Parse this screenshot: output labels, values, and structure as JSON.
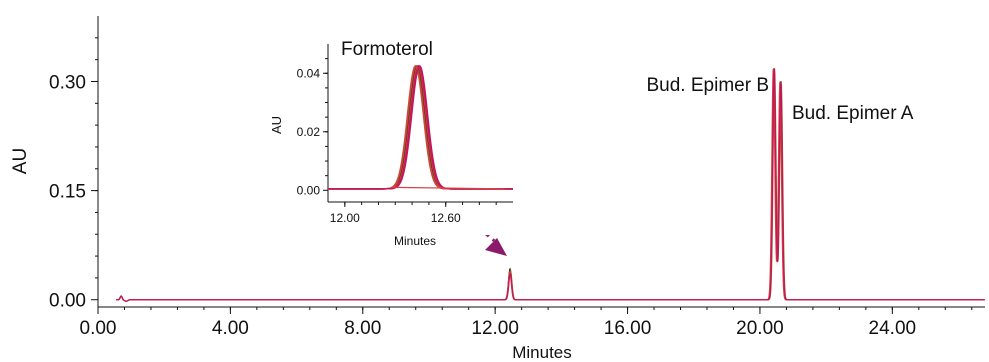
{
  "chart_data": [
    {
      "type": "line",
      "xlabel": "Minutes",
      "ylabel": "AU",
      "xlim": [
        0.0,
        26.8
      ],
      "ylim": [
        -0.01,
        0.39
      ],
      "x_ticks": [
        "0.00",
        "4.00",
        "8.00",
        "12.00",
        "16.00",
        "20.00",
        "24.00"
      ],
      "y_ticks": [
        "0.00",
        "0.15",
        "0.30"
      ],
      "peaks": [
        {
          "label": "",
          "x": 0.7,
          "y": 0.005
        },
        {
          "label": "",
          "x": 12.45,
          "y": 0.042
        },
        {
          "label": "Bud. Epimer B",
          "x": 20.42,
          "y": 0.318
        },
        {
          "label": "Bud. Epimer A",
          "x": 20.62,
          "y": 0.3
        }
      ],
      "series_colors": [
        "#111111",
        "#8a6a1a",
        "#d94040",
        "#c2185b"
      ],
      "arrow_color": "#8b1a6b"
    },
    {
      "type": "line",
      "title": "Formoterol",
      "xlabel": "Minutes",
      "ylabel": "AU",
      "xlim": [
        11.9,
        13.0
      ],
      "ylim": [
        -0.004,
        0.05
      ],
      "x_ticks": [
        "12.00",
        "12.60"
      ],
      "y_ticks": [
        "0.00",
        "0.02",
        "0.04"
      ],
      "peak": {
        "x": 12.43,
        "y": 0.042
      },
      "series_colors": [
        "#111111",
        "#8a6a1a",
        "#d94040",
        "#c2185b"
      ]
    }
  ]
}
